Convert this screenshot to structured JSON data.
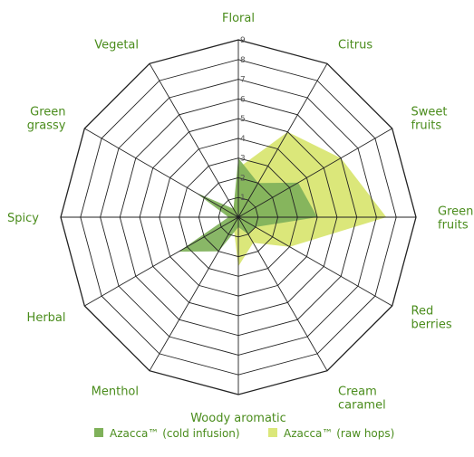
{
  "chart_data": {
    "type": "radar",
    "axes": [
      "Floral",
      "Citrus",
      "Sweet fruits",
      "Green fruits",
      "Red berries",
      "Cream caramel",
      "Woody aromatic",
      "Menthol",
      "Herbal",
      "Spicy",
      "Green grassy",
      "Vegetal"
    ],
    "axis_label_lines": [
      [
        "Floral"
      ],
      [
        "Citrus"
      ],
      [
        "Sweet",
        "fruits"
      ],
      [
        "Green",
        "fruits"
      ],
      [
        "Red",
        "berries"
      ],
      [
        "Cream",
        "caramel"
      ],
      [
        "Woody aromatic"
      ],
      [
        "Menthol"
      ],
      [
        "Herbal"
      ],
      [
        "Spicy"
      ],
      [
        "Green",
        "grassy"
      ],
      [
        "Vegetal"
      ]
    ],
    "rlim": [
      0,
      9
    ],
    "ticks": [
      "1",
      "2",
      "3",
      "4",
      "5",
      "6",
      "7",
      "8",
      "9"
    ],
    "grid": true,
    "legend_position": "bottom",
    "series": [
      {
        "name": "Azacca™ (cold infusion)",
        "color": "#7fb15a",
        "values": [
          3.0,
          2.0,
          3.5,
          4.0,
          1.0,
          1.0,
          0.5,
          2.0,
          3.5,
          0.5,
          2.5,
          0.5
        ]
      },
      {
        "name": "Azacca™  (raw hops)",
        "color": "#dbe77a",
        "values": [
          2.5,
          5.0,
          6.0,
          7.5,
          3.0,
          1.5,
          2.5,
          0.5,
          0.5,
          0.5,
          1.0,
          0.5
        ]
      }
    ]
  }
}
